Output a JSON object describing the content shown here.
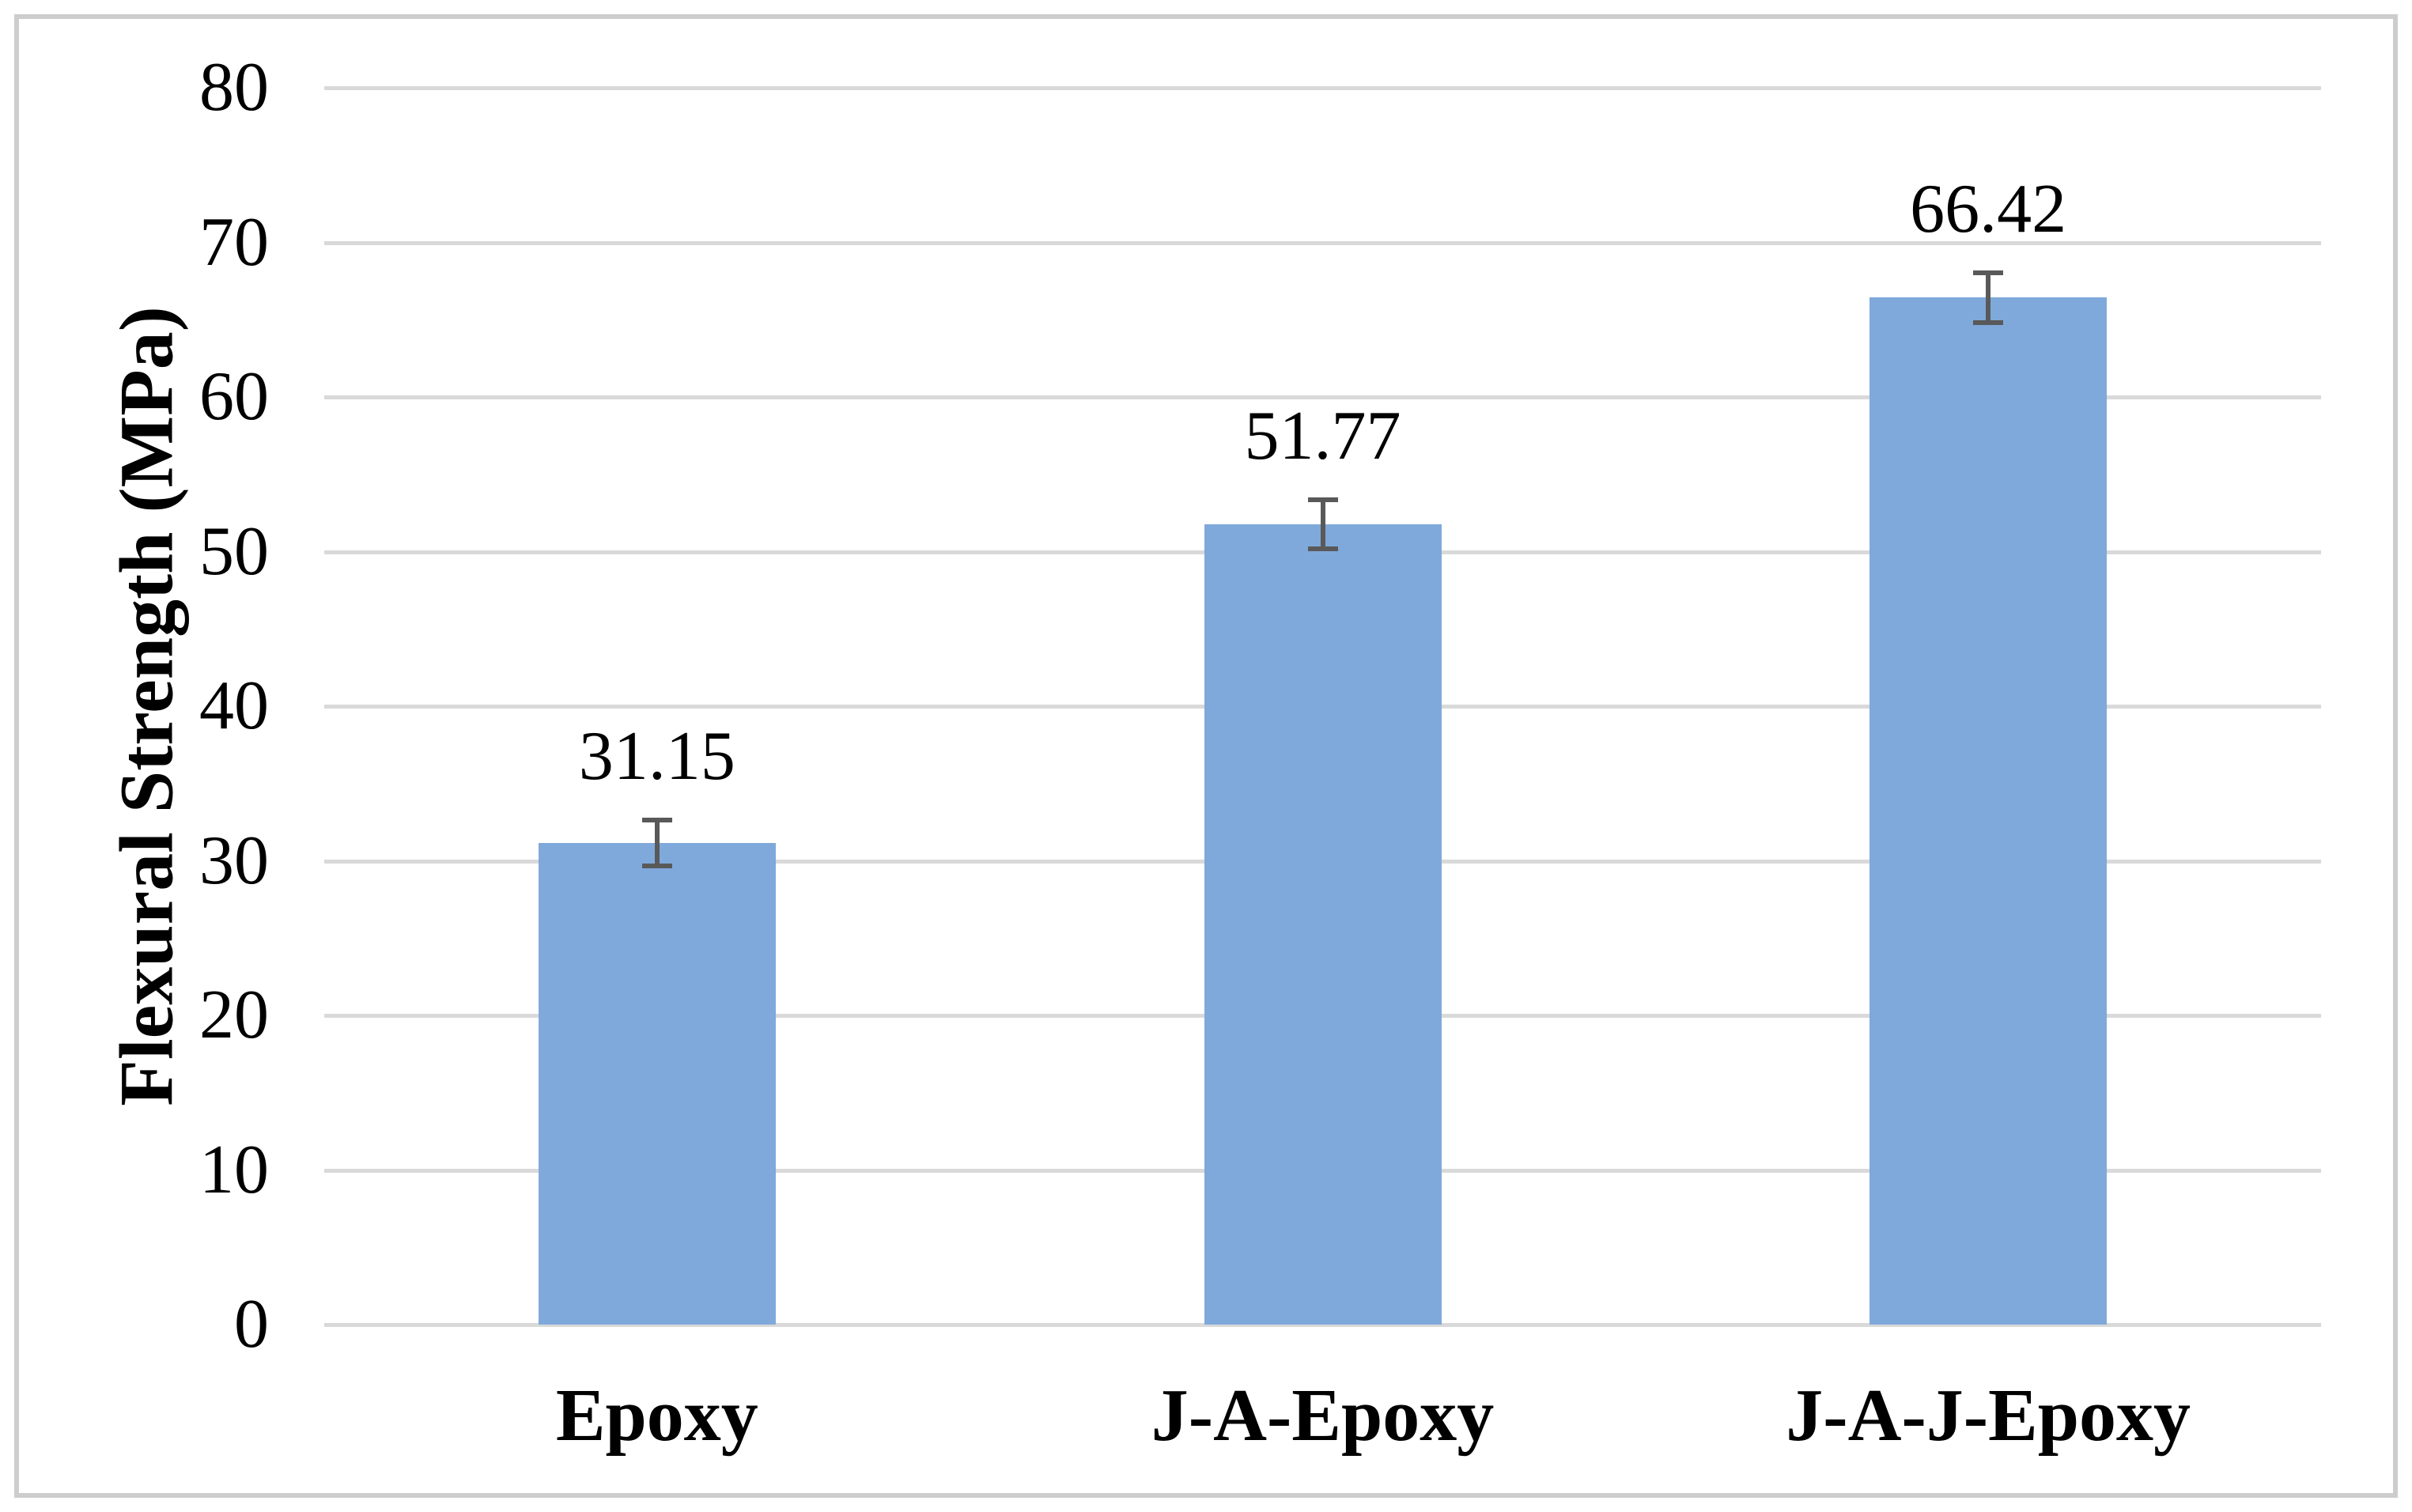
{
  "figure": {
    "background_color": "#ffffff",
    "frame_color": "#cdcdcd"
  },
  "chart_data": {
    "type": "bar",
    "title": "",
    "categories": [
      "Epoxy",
      "J-A-Epoxy",
      "J-A-J-Epoxy"
    ],
    "values": [
      31.15,
      51.77,
      66.42
    ],
    "data_labels": [
      "31.15",
      "51.77",
      "66.42"
    ],
    "error_bars": [
      1.5,
      1.6,
      1.6
    ],
    "xlabel": "",
    "ylabel": "Flexural Strength (MPa)",
    "ylim": [
      0,
      80
    ],
    "ytick_step": 10,
    "yticks": [
      0,
      10,
      20,
      30,
      40,
      50,
      60,
      70,
      80
    ],
    "grid": true,
    "legend_position": "none",
    "bar_color": "#7fa9db",
    "gridline_color": "#d9d9d9",
    "error_bar_color": "#595959",
    "text_color": "#000000"
  }
}
